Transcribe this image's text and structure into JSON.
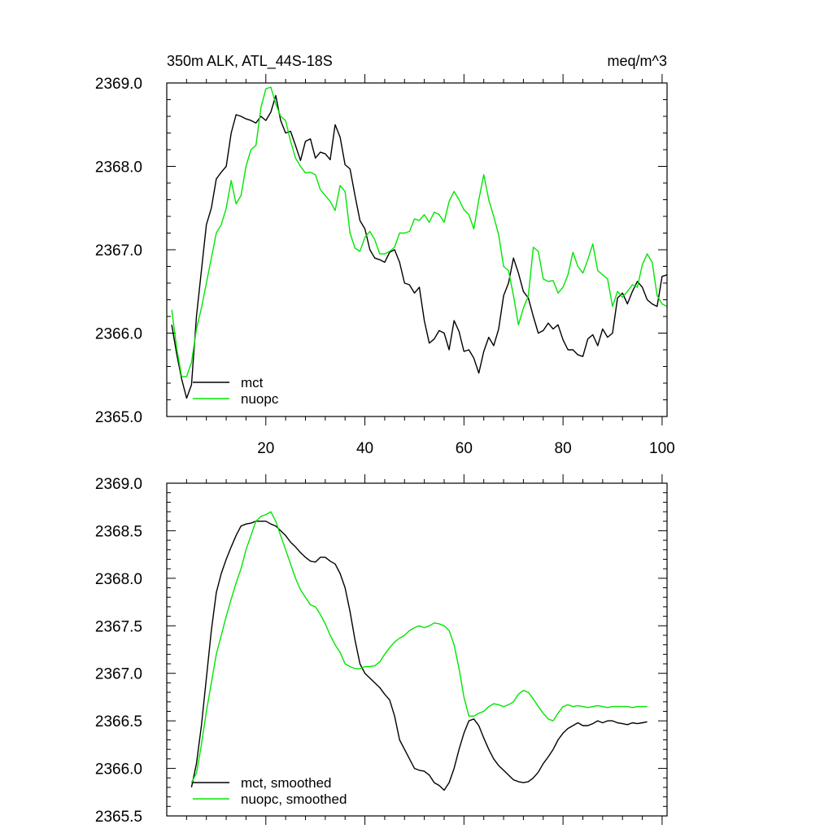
{
  "chart_data": [
    {
      "type": "line",
      "title": "350m ALK, ATL_44S-18S",
      "units": "meq/m^3",
      "xlabel": "",
      "ylabel": "",
      "xlim": [
        0,
        101
      ],
      "ylim": [
        2365.0,
        2369.0
      ],
      "xticks": [
        20,
        40,
        60,
        80,
        100
      ],
      "xtick_labels": [
        "20",
        "40",
        "60",
        "80",
        "100"
      ],
      "yticks": [
        2365.0,
        2366.0,
        2367.0,
        2368.0,
        2369.0
      ],
      "ytick_labels": [
        "2365.0",
        "2366.0",
        "2367.0",
        "2368.0",
        "2369.0"
      ],
      "legend_position": "bottom-left",
      "series": [
        {
          "name": "mct",
          "color": "#000000",
          "x": [
            1,
            2,
            3,
            4,
            5,
            6,
            7,
            8,
            9,
            10,
            11,
            12,
            13,
            14,
            15,
            16,
            17,
            18,
            19,
            20,
            21,
            22,
            23,
            24,
            25,
            26,
            27,
            28,
            29,
            30,
            31,
            32,
            33,
            34,
            35,
            36,
            37,
            38,
            39,
            40,
            41,
            42,
            43,
            44,
            45,
            46,
            47,
            48,
            49,
            50,
            51,
            52,
            53,
            54,
            55,
            56,
            57,
            58,
            59,
            60,
            61,
            62,
            63,
            64,
            65,
            66,
            67,
            68,
            69,
            70,
            71,
            72,
            73,
            74,
            75,
            76,
            77,
            78,
            79,
            80,
            81,
            82,
            83,
            84,
            85,
            86,
            87,
            88,
            89,
            90,
            91,
            92,
            93,
            94,
            95,
            96,
            97,
            98,
            99,
            100,
            101
          ],
          "y": [
            2366.1,
            2365.75,
            2365.45,
            2365.22,
            2365.38,
            2366.2,
            2366.75,
            2367.3,
            2367.5,
            2367.85,
            2367.93,
            2368.0,
            2368.4,
            2368.62,
            2368.6,
            2368.57,
            2368.55,
            2368.52,
            2368.6,
            2368.55,
            2368.65,
            2368.85,
            2368.55,
            2368.4,
            2368.42,
            2368.25,
            2368.07,
            2368.3,
            2368.33,
            2368.1,
            2368.17,
            2368.15,
            2368.08,
            2368.5,
            2368.35,
            2368.02,
            2367.97,
            2367.65,
            2367.35,
            2367.25,
            2367.0,
            2366.9,
            2366.88,
            2366.85,
            2366.97,
            2367.0,
            2366.85,
            2366.6,
            2366.58,
            2366.48,
            2366.55,
            2366.15,
            2365.88,
            2365.93,
            2366.03,
            2366.0,
            2365.8,
            2366.15,
            2366.02,
            2365.78,
            2365.8,
            2365.7,
            2365.52,
            2365.78,
            2365.95,
            2365.85,
            2366.05,
            2366.45,
            2366.6,
            2366.9,
            2366.72,
            2366.5,
            2366.42,
            2366.2,
            2366.0,
            2366.03,
            2366.12,
            2366.05,
            2366.1,
            2365.92,
            2365.8,
            2365.8,
            2365.74,
            2365.72,
            2365.93,
            2365.98,
            2365.85,
            2366.05,
            2365.95,
            2366.0,
            2366.42,
            2366.48,
            2366.35,
            2366.5,
            2366.62,
            2366.55,
            2366.4,
            2366.35,
            2366.32,
            2366.68,
            2366.7
          ]
        },
        {
          "name": "nuopc",
          "color": "#00e600",
          "x": [
            1,
            2,
            3,
            4,
            5,
            6,
            7,
            8,
            9,
            10,
            11,
            12,
            13,
            14,
            15,
            16,
            17,
            18,
            19,
            20,
            21,
            22,
            23,
            24,
            25,
            26,
            27,
            28,
            29,
            30,
            31,
            32,
            33,
            34,
            35,
            36,
            37,
            38,
            39,
            40,
            41,
            42,
            43,
            44,
            45,
            46,
            47,
            48,
            49,
            50,
            51,
            52,
            53,
            54,
            55,
            56,
            57,
            58,
            59,
            60,
            61,
            62,
            63,
            64,
            65,
            66,
            67,
            68,
            69,
            70,
            71,
            72,
            73,
            74,
            75,
            76,
            77,
            78,
            79,
            80,
            81,
            82,
            83,
            84,
            85,
            86,
            87,
            88,
            89,
            90,
            91,
            92,
            93,
            94,
            95,
            96,
            97,
            98,
            99,
            100,
            101
          ],
          "y": [
            2366.28,
            2365.82,
            2365.48,
            2365.48,
            2365.65,
            2366.05,
            2366.3,
            2366.6,
            2366.9,
            2367.2,
            2367.3,
            2367.5,
            2367.83,
            2367.55,
            2367.65,
            2368.0,
            2368.2,
            2368.25,
            2368.7,
            2368.93,
            2368.95,
            2368.75,
            2368.6,
            2368.55,
            2368.3,
            2368.1,
            2368.0,
            2367.92,
            2367.93,
            2367.9,
            2367.72,
            2367.65,
            2367.58,
            2367.47,
            2367.77,
            2367.7,
            2367.2,
            2367.02,
            2366.98,
            2367.15,
            2367.22,
            2367.12,
            2366.95,
            2366.95,
            2366.98,
            2367.03,
            2367.2,
            2367.2,
            2367.22,
            2367.37,
            2367.35,
            2367.42,
            2367.33,
            2367.45,
            2367.42,
            2367.33,
            2367.58,
            2367.7,
            2367.6,
            2367.48,
            2367.42,
            2367.25,
            2367.6,
            2367.9,
            2367.6,
            2367.4,
            2367.18,
            2366.8,
            2366.75,
            2366.45,
            2366.1,
            2366.3,
            2366.45,
            2367.03,
            2366.98,
            2366.65,
            2366.62,
            2366.63,
            2366.48,
            2366.55,
            2366.7,
            2366.97,
            2366.8,
            2366.72,
            2366.88,
            2367.07,
            2366.75,
            2366.7,
            2366.65,
            2366.32,
            2366.5,
            2366.43,
            2366.5,
            2366.58,
            2366.55,
            2366.82,
            2366.95,
            2366.85,
            2366.45,
            2366.35,
            2366.32
          ]
        }
      ]
    },
    {
      "type": "line",
      "title": "",
      "xlabel": "",
      "ylabel": "",
      "xlim": [
        0,
        101
      ],
      "ylim": [
        2365.5,
        2369.0
      ],
      "xticks": [
        20,
        40,
        60,
        80,
        100
      ],
      "xtick_labels": [],
      "yticks": [
        2365.5,
        2366.0,
        2366.5,
        2367.0,
        2367.5,
        2368.0,
        2368.5,
        2369.0
      ],
      "ytick_labels": [
        "2365.5",
        "2366.0",
        "2366.5",
        "2367.0",
        "2367.5",
        "2368.0",
        "2368.5",
        "2369.0"
      ],
      "legend_position": "bottom-left",
      "series": [
        {
          "name": "mct, smoothed",
          "color": "#000000",
          "x": [
            5,
            6,
            7,
            8,
            9,
            10,
            11,
            12,
            13,
            14,
            15,
            16,
            17,
            18,
            19,
            20,
            21,
            22,
            23,
            24,
            25,
            26,
            27,
            28,
            29,
            30,
            31,
            32,
            33,
            34,
            35,
            36,
            37,
            38,
            39,
            40,
            41,
            42,
            43,
            44,
            45,
            46,
            47,
            48,
            49,
            50,
            51,
            52,
            53,
            54,
            55,
            56,
            57,
            58,
            59,
            60,
            61,
            62,
            63,
            64,
            65,
            66,
            67,
            68,
            69,
            70,
            71,
            72,
            73,
            74,
            75,
            76,
            77,
            78,
            79,
            80,
            81,
            82,
            83,
            84,
            85,
            86,
            87,
            88,
            89,
            90,
            91,
            92,
            93,
            94,
            95,
            96,
            97
          ],
          "y": [
            2365.8,
            2366.05,
            2366.45,
            2366.95,
            2367.45,
            2367.85,
            2368.05,
            2368.2,
            2368.33,
            2368.45,
            2368.55,
            2368.57,
            2368.58,
            2368.6,
            2368.6,
            2368.6,
            2368.57,
            2368.55,
            2368.5,
            2368.45,
            2368.38,
            2368.33,
            2368.27,
            2368.22,
            2368.18,
            2368.17,
            2368.22,
            2368.22,
            2368.18,
            2368.15,
            2368.05,
            2367.9,
            2367.65,
            2367.35,
            2367.1,
            2367.0,
            2366.95,
            2366.9,
            2366.85,
            2366.78,
            2366.72,
            2366.55,
            2366.3,
            2366.2,
            2366.1,
            2366.0,
            2365.98,
            2365.97,
            2365.93,
            2365.85,
            2365.82,
            2365.77,
            2365.85,
            2366.0,
            2366.2,
            2366.37,
            2366.5,
            2366.52,
            2366.45,
            2366.32,
            2366.2,
            2366.1,
            2366.03,
            2365.98,
            2365.93,
            2365.88,
            2365.86,
            2365.85,
            2365.86,
            2365.9,
            2365.96,
            2366.05,
            2366.12,
            2366.2,
            2366.3,
            2366.37,
            2366.42,
            2366.45,
            2366.48,
            2366.45,
            2366.45,
            2366.47,
            2366.5,
            2366.48,
            2366.5,
            2366.5,
            2366.48,
            2366.47,
            2366.46,
            2366.48,
            2366.47,
            2366.48,
            2366.49
          ]
        },
        {
          "name": "nuopc, smoothed",
          "color": "#00e600",
          "x": [
            5,
            6,
            7,
            8,
            9,
            10,
            11,
            12,
            13,
            14,
            15,
            16,
            17,
            18,
            19,
            20,
            21,
            22,
            23,
            24,
            25,
            26,
            27,
            28,
            29,
            30,
            31,
            32,
            33,
            34,
            35,
            36,
            37,
            38,
            39,
            40,
            41,
            42,
            43,
            44,
            45,
            46,
            47,
            48,
            49,
            50,
            51,
            52,
            53,
            54,
            55,
            56,
            57,
            58,
            59,
            60,
            61,
            62,
            63,
            64,
            65,
            66,
            67,
            68,
            69,
            70,
            71,
            72,
            73,
            74,
            75,
            76,
            77,
            78,
            79,
            80,
            81,
            82,
            83,
            84,
            85,
            86,
            87,
            88,
            89,
            90,
            91,
            92,
            93,
            94,
            95,
            96,
            97
          ],
          "y": [
            2365.85,
            2365.95,
            2366.25,
            2366.6,
            2366.9,
            2367.2,
            2367.4,
            2367.6,
            2367.78,
            2367.95,
            2368.1,
            2368.3,
            2368.45,
            2368.6,
            2368.65,
            2368.67,
            2368.7,
            2368.6,
            2368.45,
            2368.3,
            2368.15,
            2368.0,
            2367.88,
            2367.8,
            2367.72,
            2367.7,
            2367.62,
            2367.52,
            2367.4,
            2367.3,
            2367.22,
            2367.1,
            2367.07,
            2367.05,
            2367.05,
            2367.07,
            2367.07,
            2367.08,
            2367.12,
            2367.2,
            2367.27,
            2367.33,
            2367.37,
            2367.4,
            2367.45,
            2367.48,
            2367.5,
            2367.48,
            2367.5,
            2367.53,
            2367.52,
            2367.5,
            2367.45,
            2367.3,
            2367.05,
            2366.75,
            2366.55,
            2366.55,
            2366.58,
            2366.6,
            2366.65,
            2366.68,
            2366.67,
            2366.65,
            2366.67,
            2366.7,
            2366.78,
            2366.82,
            2366.8,
            2366.73,
            2366.65,
            2366.58,
            2366.52,
            2366.5,
            2366.58,
            2366.65,
            2366.67,
            2366.65,
            2366.66,
            2366.65,
            2366.64,
            2366.65,
            2366.66,
            2366.65,
            2366.64,
            2366.65,
            2366.65,
            2366.65,
            2366.65,
            2366.64,
            2366.65,
            2366.65,
            2366.65
          ]
        }
      ]
    }
  ]
}
